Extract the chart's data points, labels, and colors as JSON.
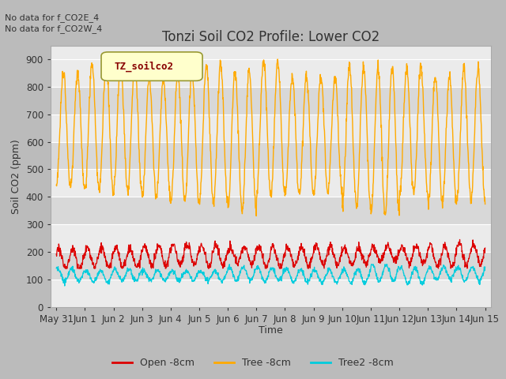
{
  "title": "Tonzi Soil CO2 Profile: Lower CO2",
  "ylabel": "Soil CO2 (ppm)",
  "xlabel": "Time",
  "annotations": [
    "No data for f_CO2E_4",
    "No data for f_CO2W_4"
  ],
  "legend_label": "TZ_soilco2",
  "series_labels": [
    "Open -8cm",
    "Tree -8cm",
    "Tree2 -8cm"
  ],
  "series_colors": [
    "#dd0000",
    "#ffaa00",
    "#00ccdd"
  ],
  "ylim": [
    0,
    950
  ],
  "yticks": [
    0,
    100,
    200,
    300,
    400,
    500,
    600,
    700,
    800,
    900
  ],
  "band_colors": [
    "#ebebeb",
    "#d8d8d8"
  ],
  "fig_bg_color": "#bbbbbb",
  "num_days": 15,
  "x_tick_labels": [
    "May 31",
    "Jun 1",
    "Jun 2",
    "Jun 3",
    "Jun 4",
    "Jun 5",
    "Jun 6",
    "Jun 7",
    "Jun 8",
    "Jun 9",
    "Jun 10",
    "Jun 11",
    "Jun 12",
    "Jun 13",
    "Jun 14",
    "Jun 15"
  ],
  "title_fontsize": 12,
  "label_fontsize": 9,
  "tick_fontsize": 8.5,
  "annot_fontsize": 8
}
